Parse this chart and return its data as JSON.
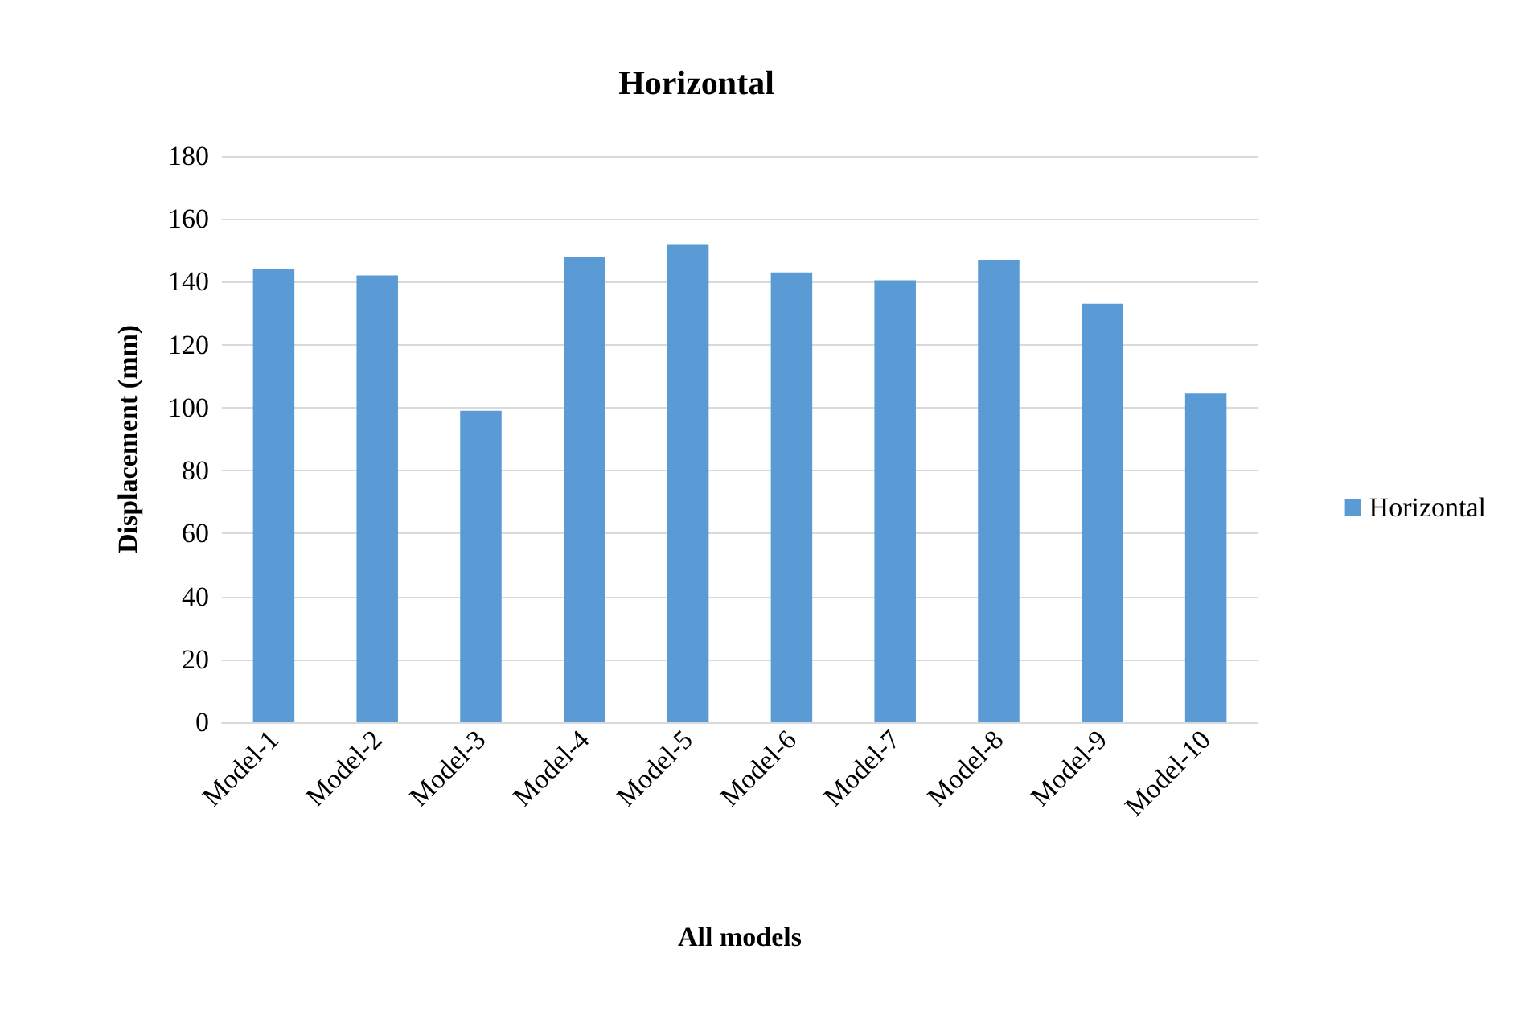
{
  "chart_data": {
    "type": "bar",
    "title": "Horizontal",
    "xlabel": "All models",
    "ylabel": "Displacement (mm)",
    "categories": [
      "Model-1",
      "Model-2",
      "Model-3",
      "Model-4",
      "Model-5",
      "Model-6",
      "Model-7",
      "Model-8",
      "Model-9",
      "Model-10"
    ],
    "series": [
      {
        "name": "Horizontal",
        "color": "#5b9bd5",
        "values": [
          144,
          142,
          99,
          148,
          152,
          143,
          140.5,
          147,
          133,
          104.5
        ]
      }
    ],
    "ylim": [
      0,
      180
    ],
    "yticks": [
      0,
      20,
      40,
      60,
      80,
      100,
      120,
      140,
      160,
      180
    ],
    "grid": "y",
    "legend": "right"
  }
}
